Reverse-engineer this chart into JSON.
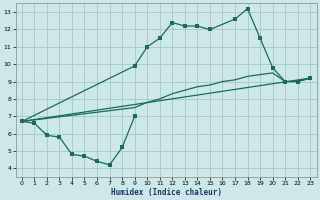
{
  "xlabel": "Humidex (Indice chaleur)",
  "xlim": [
    -0.5,
    23.5
  ],
  "ylim": [
    3.5,
    13.5
  ],
  "xticks": [
    0,
    1,
    2,
    3,
    4,
    5,
    6,
    7,
    8,
    9,
    10,
    11,
    12,
    13,
    14,
    15,
    16,
    17,
    18,
    19,
    20,
    21,
    22,
    23
  ],
  "yticks": [
    4,
    5,
    6,
    7,
    8,
    9,
    10,
    11,
    12,
    13
  ],
  "bg_color": "#cce8e8",
  "grid_color": "#aacccc",
  "line_color": "#1a6b5a",
  "line1_x": [
    0,
    1,
    2,
    3,
    4,
    5,
    6,
    7,
    8,
    9
  ],
  "line1_y": [
    6.7,
    6.6,
    5.9,
    5.8,
    4.8,
    4.7,
    4.4,
    4.2,
    5.2,
    7.0
  ],
  "line2_x": [
    0,
    9,
    10,
    11,
    12,
    13,
    14,
    15,
    17,
    18,
    19,
    20,
    21,
    22,
    23
  ],
  "line2_y": [
    6.7,
    9.9,
    11.0,
    11.5,
    12.4,
    12.2,
    12.2,
    12.0,
    12.6,
    13.2,
    11.5,
    9.8,
    9.0,
    9.0,
    9.2
  ],
  "line3_x": [
    0,
    9,
    10,
    11,
    12,
    13,
    14,
    15,
    16,
    17,
    18,
    19,
    20,
    21,
    22,
    23
  ],
  "line3_y": [
    6.7,
    7.5,
    7.8,
    8.0,
    8.3,
    8.5,
    8.7,
    8.8,
    9.0,
    9.1,
    9.3,
    9.4,
    9.5,
    9.0,
    9.0,
    9.2
  ],
  "line4_x": [
    0,
    23
  ],
  "line4_y": [
    6.7,
    9.2
  ]
}
